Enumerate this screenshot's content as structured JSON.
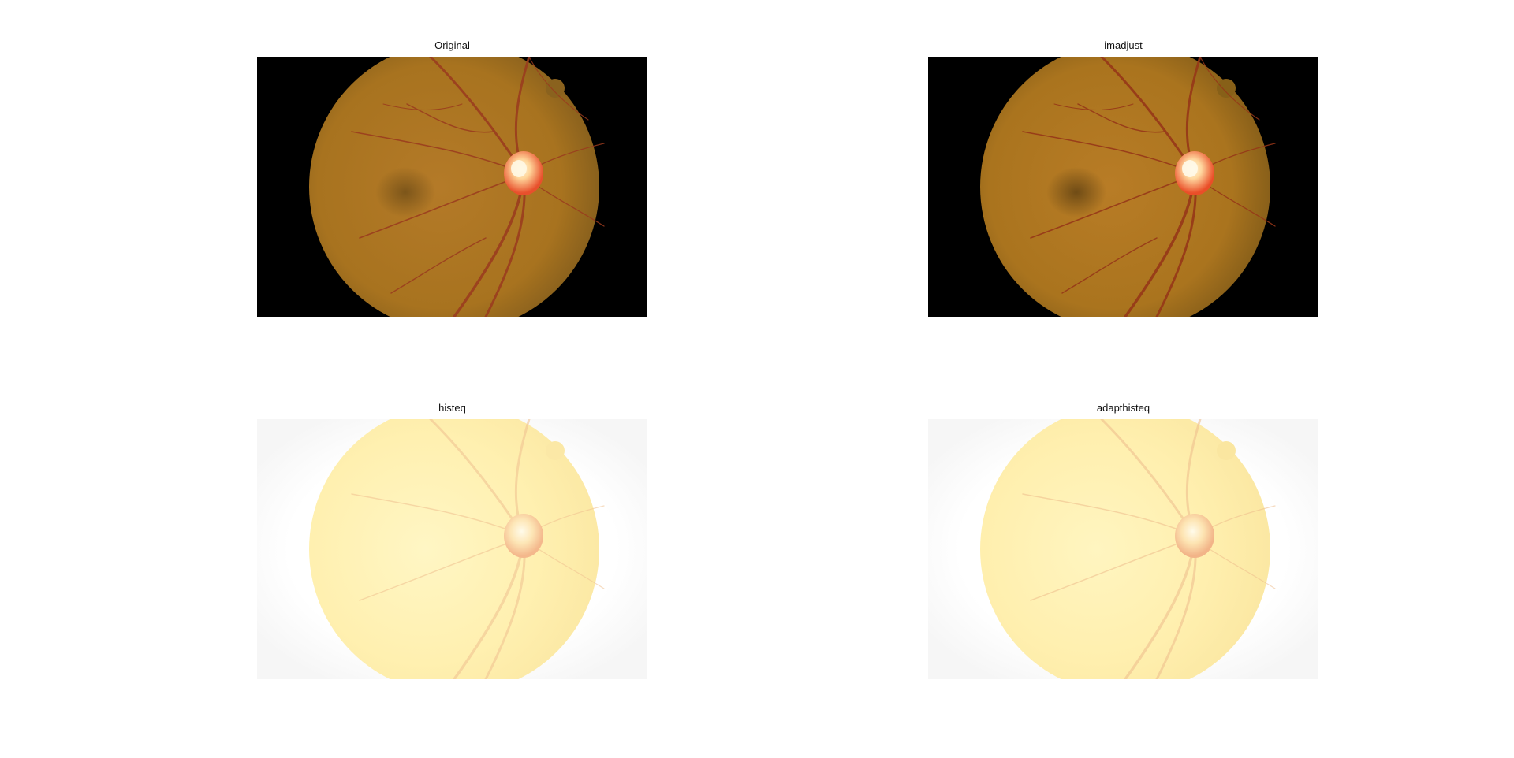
{
  "figure": {
    "panels": [
      {
        "title": "Original",
        "variant": "original",
        "bg": "#000000"
      },
      {
        "title": "imadjust",
        "variant": "original",
        "bg": "#000000"
      },
      {
        "title": "histeq",
        "variant": "washed",
        "bg": "#ffffff"
      },
      {
        "title": "adapthisteq",
        "variant": "washed",
        "bg": "#ffffff"
      }
    ]
  },
  "colors": {
    "fundus_center": "#b07a2a",
    "fundus_edge": "#7a5a1e",
    "vessel": "#9a3a1e",
    "optic_disc": "#ffd0a0",
    "washed_center": "#fff2b0",
    "washed_edge": "#fbe8a6",
    "washed_vessel": "#f2c79a"
  }
}
